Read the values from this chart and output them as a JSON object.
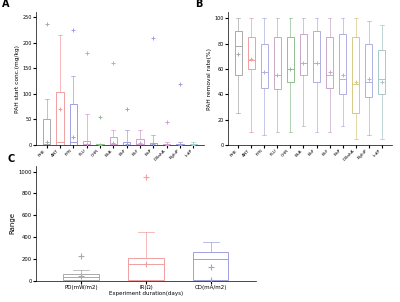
{
  "panel_A": {
    "title": "A",
    "ylabel": "PAH start conc.(mg/kg)",
    "categories": [
      "PHE",
      "ANT",
      "PYR",
      "FLU",
      "CHR",
      "BkA",
      "BbF",
      "BkF",
      "BaP",
      "DBahA",
      "BghiP",
      "IcdP"
    ],
    "box_colors": [
      "#aaaaaa",
      "#f0a0a0",
      "#a0a0e0",
      "#d0a0d0",
      "#90c090",
      "#d0a0d0",
      "#a0a0e0",
      "#d0a0d0",
      "#a0a0e0",
      "#d0a0d0",
      "#a0a0e0",
      "#a0d0d0"
    ],
    "boxes": [
      {
        "q1": 0,
        "med": 2,
        "q3": 50,
        "whislo": 0,
        "whishi": 90,
        "mean": 5,
        "fliers": [
          237
        ]
      },
      {
        "q1": 0,
        "med": 5,
        "q3": 103,
        "whislo": 0,
        "whishi": 215,
        "mean": 70,
        "fliers": []
      },
      {
        "q1": 0,
        "med": 5,
        "q3": 80,
        "whislo": 0,
        "whishi": 135,
        "mean": 15,
        "fliers": [
          225
        ]
      },
      {
        "q1": 0,
        "med": 1,
        "q3": 7,
        "whislo": 0,
        "whishi": 60,
        "mean": 2,
        "fliers": [
          180
        ]
      },
      {
        "q1": 0,
        "med": 0.5,
        "q3": 1,
        "whislo": 0,
        "whishi": 2,
        "mean": 0.5,
        "fliers": [
          55
        ]
      },
      {
        "q1": 0,
        "med": 1,
        "q3": 15,
        "whislo": 0,
        "whishi": 30,
        "mean": 3,
        "fliers": [
          160
        ]
      },
      {
        "q1": 0,
        "med": 0.5,
        "q3": 5,
        "whislo": 0,
        "whishi": 30,
        "mean": 2,
        "fliers": [
          70
        ]
      },
      {
        "q1": 0,
        "med": 1,
        "q3": 12,
        "whislo": 0,
        "whishi": 30,
        "mean": 3,
        "fliers": []
      },
      {
        "q1": 0,
        "med": 0.5,
        "q3": 3,
        "whislo": 0,
        "whishi": 20,
        "mean": 1,
        "fliers": [
          210
        ]
      },
      {
        "q1": 0,
        "med": 0.3,
        "q3": 2,
        "whislo": 0,
        "whishi": 5,
        "mean": 0.5,
        "fliers": [
          45
        ]
      },
      {
        "q1": 0,
        "med": 0.3,
        "q3": 2,
        "whislo": 0,
        "whishi": 5,
        "mean": 0.5,
        "fliers": [
          120
        ]
      },
      {
        "q1": 0,
        "med": 0.3,
        "q3": 2,
        "whislo": 0,
        "whishi": 5,
        "mean": 0.5,
        "fliers": []
      }
    ],
    "ylim": [
      0,
      260
    ],
    "yticks": [
      0,
      50,
      100,
      150,
      200,
      250
    ]
  },
  "panel_B": {
    "title": "B",
    "ylabel": "PAH removal rate(%)",
    "categories": [
      "PHE",
      "ANT",
      "PYR",
      "FLU",
      "CHR",
      "BkA",
      "BbF",
      "BkF",
      "BaP",
      "DBahA",
      "BghiP",
      "IcdP"
    ],
    "box_colors": [
      "#aaaaaa",
      "#f0a0a0",
      "#b0b0e0",
      "#c8a8c8",
      "#90c090",
      "#c8a8c8",
      "#b0b0e0",
      "#c8a8c8",
      "#b0b0e0",
      "#d8c888",
      "#b0b0e0",
      "#a8c8c8"
    ],
    "boxes": [
      {
        "q1": 55,
        "med": 78,
        "q3": 90,
        "whislo": 25,
        "whishi": 100,
        "mean": 72,
        "fliers": []
      },
      {
        "q1": 60,
        "med": 67,
        "q3": 85,
        "whislo": 10,
        "whishi": 100,
        "mean": 68,
        "fliers": []
      },
      {
        "q1": 45,
        "med": 58,
        "q3": 80,
        "whislo": 8,
        "whishi": 100,
        "mean": 58,
        "fliers": []
      },
      {
        "q1": 44,
        "med": 55,
        "q3": 85,
        "whislo": 10,
        "whishi": 100,
        "mean": 55,
        "fliers": []
      },
      {
        "q1": 50,
        "med": 60,
        "q3": 85,
        "whislo": 10,
        "whishi": 100,
        "mean": 60,
        "fliers": []
      },
      {
        "q1": 55,
        "med": 65,
        "q3": 88,
        "whislo": 15,
        "whishi": 100,
        "mean": 65,
        "fliers": []
      },
      {
        "q1": 50,
        "med": 65,
        "q3": 90,
        "whislo": 10,
        "whishi": 100,
        "mean": 65,
        "fliers": []
      },
      {
        "q1": 45,
        "med": 55,
        "q3": 85,
        "whislo": 10,
        "whishi": 100,
        "mean": 58,
        "fliers": []
      },
      {
        "q1": 40,
        "med": 52,
        "q3": 88,
        "whislo": 15,
        "whishi": 100,
        "mean": 55,
        "fliers": []
      },
      {
        "q1": 25,
        "med": 48,
        "q3": 85,
        "whislo": 5,
        "whishi": 100,
        "mean": 50,
        "fliers": []
      },
      {
        "q1": 38,
        "med": 50,
        "q3": 80,
        "whislo": 8,
        "whishi": 98,
        "mean": 52,
        "fliers": []
      },
      {
        "q1": 40,
        "med": 52,
        "q3": 75,
        "whislo": 5,
        "whishi": 95,
        "mean": 50,
        "fliers": []
      }
    ],
    "ylim": [
      0,
      105
    ],
    "yticks": [
      0,
      20,
      40,
      60,
      80,
      100
    ]
  },
  "panel_C": {
    "title": "C",
    "ylabel": "Range",
    "xlabel": "Experiment duration(days)",
    "categories": [
      "PD(mW/m2)",
      "IR(Ω)",
      "CD(mA/m2)"
    ],
    "box_colors": [
      "#aaaaaa",
      "#f0a0a0",
      "#a0a0e0"
    ],
    "boxes": [
      {
        "q1": 10,
        "med": 35,
        "q3": 65,
        "whislo": 0,
        "whishi": 100,
        "mean": 40,
        "fliers": [
          230
        ]
      },
      {
        "q1": 5,
        "med": 150,
        "q3": 210,
        "whislo": 0,
        "whishi": 450,
        "mean": 150,
        "fliers": [
          950
        ]
      },
      {
        "q1": 5,
        "med": 200,
        "q3": 260,
        "whislo": 0,
        "whishi": 360,
        "mean": 130,
        "fliers": [
          5
        ]
      }
    ],
    "ylim": [
      0,
      1050
    ],
    "yticks": [
      0,
      200,
      400,
      600,
      800,
      1000
    ]
  },
  "fig_bg": "#ffffff"
}
